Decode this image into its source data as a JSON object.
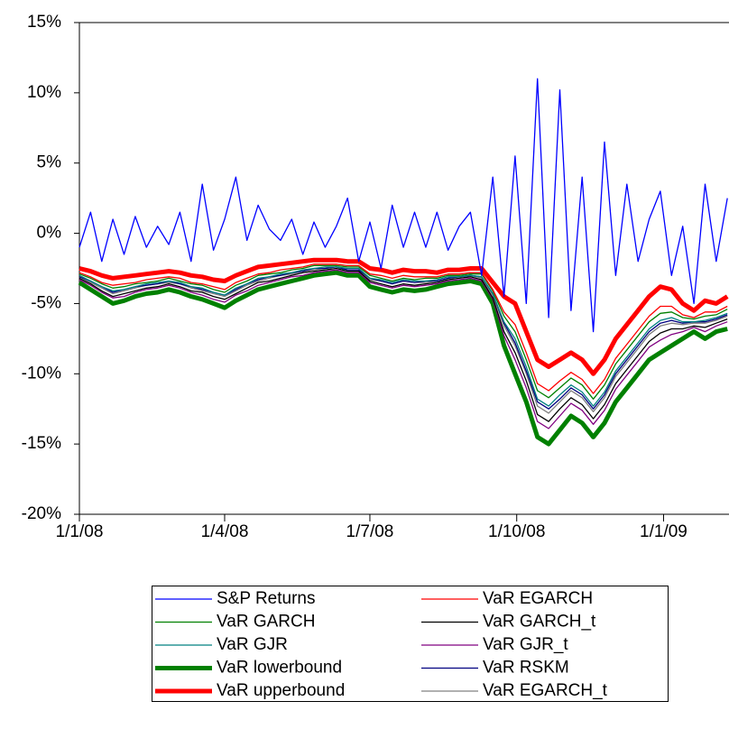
{
  "chart_data": {
    "type": "line",
    "x": [
      "2008-01-01",
      "2008-01-08",
      "2008-01-15",
      "2008-01-22",
      "2008-01-29",
      "2008-02-05",
      "2008-02-12",
      "2008-02-19",
      "2008-02-26",
      "2008-03-04",
      "2008-03-11",
      "2008-03-18",
      "2008-03-25",
      "2008-04-01",
      "2008-04-08",
      "2008-04-15",
      "2008-04-22",
      "2008-04-29",
      "2008-05-06",
      "2008-05-13",
      "2008-05-20",
      "2008-05-27",
      "2008-06-03",
      "2008-06-10",
      "2008-06-17",
      "2008-06-24",
      "2008-07-01",
      "2008-07-08",
      "2008-07-15",
      "2008-07-22",
      "2008-07-29",
      "2008-08-05",
      "2008-08-12",
      "2008-08-19",
      "2008-08-26",
      "2008-09-02",
      "2008-09-09",
      "2008-09-16",
      "2008-09-23",
      "2008-09-30",
      "2008-10-07",
      "2008-10-14",
      "2008-10-21",
      "2008-10-28",
      "2008-11-04",
      "2008-11-11",
      "2008-11-18",
      "2008-11-25",
      "2008-12-02",
      "2008-12-09",
      "2008-12-16",
      "2008-12-23",
      "2008-12-30",
      "2009-01-06",
      "2009-01-13",
      "2009-01-20",
      "2009-01-27",
      "2009-02-03",
      "2009-02-10"
    ],
    "xlim": [
      "2008-01-01",
      "2009-02-11"
    ],
    "xticks": [
      {
        "value": "2008-01-01",
        "label": "1/1/08"
      },
      {
        "value": "2008-04-01",
        "label": "1/4/08"
      },
      {
        "value": "2008-07-01",
        "label": "1/7/08"
      },
      {
        "value": "2008-10-01",
        "label": "1/10/08"
      },
      {
        "value": "2009-01-01",
        "label": "1/1/09"
      }
    ],
    "ylim": [
      -20,
      15
    ],
    "yticks": [
      {
        "value": -20,
        "label": "-20%"
      },
      {
        "value": -15,
        "label": "-15%"
      },
      {
        "value": -10,
        "label": "-10%"
      },
      {
        "value": -5,
        "label": "-5%"
      },
      {
        "value": 0,
        "label": "0%"
      },
      {
        "value": 5,
        "label": "5%"
      },
      {
        "value": 10,
        "label": "10%"
      },
      {
        "value": 15,
        "label": "15%"
      }
    ],
    "series": [
      {
        "name": "S&P Returns",
        "color": "#0000ff",
        "linewidth": 1.3,
        "values": [
          -1,
          1.5,
          -2,
          1.0,
          -1.5,
          1.2,
          -1,
          0.5,
          -0.8,
          1.5,
          -2.0,
          3.5,
          -1.2,
          1.0,
          4.0,
          -0.5,
          2.0,
          0.3,
          -0.5,
          1.0,
          -1.5,
          0.8,
          -1.0,
          0.5,
          2.5,
          -2.0,
          0.8,
          -2.5,
          2.0,
          -1.0,
          1.5,
          -1.0,
          1.5,
          -1.2,
          0.5,
          1.5,
          -3.0,
          4.0,
          -4.5,
          5.5,
          -5.0,
          11.0,
          -6.0,
          10.2,
          -5.5,
          4.0,
          -7.0,
          6.5,
          -3.0,
          3.5,
          -2.0,
          1.0,
          3.0,
          -3.0,
          0.5,
          -5.0,
          3.5,
          -2.0,
          2.5
        ]
      },
      {
        "name": "VaR EGARCH",
        "color": "#ff0000",
        "linewidth": 1.3,
        "values": [
          -2.8,
          -3.1,
          -3.5,
          -3.7,
          -3.6,
          -3.5,
          -3.3,
          -3.2,
          -3.1,
          -3.2,
          -3.5,
          -3.6,
          -3.8,
          -4.0,
          -3.5,
          -3.2,
          -2.9,
          -2.8,
          -2.6,
          -2.5,
          -2.4,
          -2.2,
          -2.2,
          -2.2,
          -2.3,
          -2.3,
          -2.9,
          -3.0,
          -3.2,
          -3.0,
          -3.1,
          -3.1,
          -3.1,
          -2.9,
          -2.9,
          -2.8,
          -2.8,
          -4.0,
          -5.6,
          -6.5,
          -8.5,
          -10.7,
          -11.2,
          -10.5,
          -9.9,
          -10.4,
          -11.4,
          -10.4,
          -8.9,
          -7.9,
          -6.9,
          -5.9,
          -5.2,
          -5.2,
          -5.8,
          -6.0,
          -5.6,
          -5.6,
          -5.2
        ]
      },
      {
        "name": "VaR GARCH",
        "color": "#008000",
        "linewidth": 1.3,
        "values": [
          -2.9,
          -3.2,
          -3.6,
          -3.9,
          -3.8,
          -3.6,
          -3.5,
          -3.4,
          -3.2,
          -3.4,
          -3.6,
          -3.7,
          -4.0,
          -4.2,
          -3.7,
          -3.4,
          -3.0,
          -2.9,
          -2.8,
          -2.6,
          -2.5,
          -2.3,
          -2.3,
          -2.3,
          -2.4,
          -2.4,
          -3.0,
          -3.2,
          -3.4,
          -3.2,
          -3.3,
          -3.2,
          -3.2,
          -3.0,
          -3.0,
          -2.9,
          -2.9,
          -4.1,
          -5.9,
          -7.0,
          -9.0,
          -11.2,
          -11.7,
          -11.0,
          -10.3,
          -10.8,
          -11.8,
          -10.8,
          -9.3,
          -8.3,
          -7.3,
          -6.3,
          -5.7,
          -5.6,
          -6.0,
          -6.1,
          -5.9,
          -5.8,
          -5.4
        ]
      },
      {
        "name": "VaR GARCH_t",
        "color": "#000000",
        "linewidth": 1.3,
        "values": [
          -3.2,
          -3.6,
          -4.1,
          -4.5,
          -4.3,
          -4.1,
          -3.9,
          -3.8,
          -3.6,
          -3.8,
          -4.1,
          -4.2,
          -4.5,
          -4.7,
          -4.3,
          -3.9,
          -3.5,
          -3.4,
          -3.2,
          -3.0,
          -2.8,
          -2.7,
          -2.6,
          -2.5,
          -2.7,
          -2.7,
          -3.4,
          -3.6,
          -3.8,
          -3.6,
          -3.7,
          -3.6,
          -3.5,
          -3.3,
          -3.2,
          -3.1,
          -3.3,
          -4.6,
          -7.0,
          -8.5,
          -10.5,
          -12.9,
          -13.4,
          -12.5,
          -11.7,
          -12.2,
          -13.2,
          -12.2,
          -10.7,
          -9.7,
          -8.7,
          -7.7,
          -7.1,
          -6.8,
          -6.8,
          -6.6,
          -6.7,
          -6.4,
          -6.1
        ]
      },
      {
        "name": "VaR GJR",
        "color": "#008080",
        "linewidth": 1.3,
        "values": [
          -3.0,
          -3.4,
          -3.8,
          -4.1,
          -4.0,
          -3.8,
          -3.6,
          -3.5,
          -3.4,
          -3.5,
          -3.8,
          -3.9,
          -4.2,
          -4.4,
          -3.9,
          -3.6,
          -3.2,
          -3.1,
          -2.9,
          -2.8,
          -2.6,
          -2.5,
          -2.4,
          -2.4,
          -2.5,
          -2.5,
          -3.2,
          -3.3,
          -3.5,
          -3.3,
          -3.4,
          -3.4,
          -3.3,
          -3.1,
          -3.1,
          -3.0,
          -3.1,
          -4.3,
          -6.3,
          -7.5,
          -9.5,
          -11.8,
          -12.3,
          -11.5,
          -10.8,
          -11.3,
          -12.3,
          -11.3,
          -9.8,
          -8.8,
          -7.8,
          -6.8,
          -6.2,
          -6.0,
          -6.3,
          -6.3,
          -6.2,
          -6.0,
          -5.7
        ]
      },
      {
        "name": "VaR GJR_t",
        "color": "#800080",
        "linewidth": 1.3,
        "values": [
          -3.3,
          -3.7,
          -4.2,
          -4.6,
          -4.5,
          -4.2,
          -4.0,
          -3.9,
          -3.7,
          -3.9,
          -4.2,
          -4.4,
          -4.7,
          -4.9,
          -4.4,
          -4.1,
          -3.7,
          -3.5,
          -3.3,
          -3.1,
          -3.0,
          -2.8,
          -2.7,
          -2.6,
          -2.8,
          -2.8,
          -3.5,
          -3.7,
          -3.9,
          -3.7,
          -3.8,
          -3.7,
          -3.6,
          -3.4,
          -3.3,
          -3.2,
          -3.4,
          -4.7,
          -7.3,
          -9.0,
          -11.0,
          -13.4,
          -13.9,
          -13.0,
          -12.1,
          -12.6,
          -13.6,
          -12.6,
          -11.1,
          -10.1,
          -9.1,
          -8.1,
          -7.6,
          -7.2,
          -7.0,
          -6.7,
          -7.0,
          -6.6,
          -6.3
        ]
      },
      {
        "name": "VaR lowerbound",
        "color": "#008000",
        "linewidth": 5,
        "values": [
          -3.5,
          -4,
          -4.5,
          -5,
          -4.8,
          -4.5,
          -4.3,
          -4.2,
          -4.0,
          -4.2,
          -4.5,
          -4.7,
          -5.0,
          -5.3,
          -4.8,
          -4.4,
          -4.0,
          -3.8,
          -3.6,
          -3.4,
          -3.2,
          -3.0,
          -2.9,
          -2.8,
          -3.0,
          -3.0,
          -3.8,
          -4.0,
          -4.2,
          -4.0,
          -4.1,
          -4.0,
          -3.8,
          -3.6,
          -3.5,
          -3.4,
          -3.6,
          -5.0,
          -8.0,
          -10.0,
          -12.0,
          -14.5,
          -15.0,
          -14.0,
          -13.0,
          -13.5,
          -14.5,
          -13.5,
          -12.0,
          -11.0,
          -10.0,
          -9.0,
          -8.5,
          -8.0,
          -7.5,
          -7.0,
          -7.5,
          -7.0,
          -6.8
        ]
      },
      {
        "name": "VaR RSKM",
        "color": "#000080",
        "linewidth": 1.3,
        "values": [
          -3.1,
          -3.4,
          -3.8,
          -4.2,
          -4.0,
          -3.8,
          -3.7,
          -3.6,
          -3.4,
          -3.6,
          -3.8,
          -4.0,
          -4.2,
          -4.4,
          -4.0,
          -3.6,
          -3.3,
          -3.1,
          -3.0,
          -2.8,
          -2.7,
          -2.5,
          -2.5,
          -2.4,
          -2.6,
          -2.6,
          -3.2,
          -3.4,
          -3.6,
          -3.4,
          -3.5,
          -3.4,
          -3.4,
          -3.2,
          -3.1,
          -3.0,
          -3.1,
          -4.3,
          -6.4,
          -7.8,
          -9.8,
          -12.0,
          -12.5,
          -11.8,
          -11.0,
          -11.5,
          -12.5,
          -11.5,
          -10.0,
          -9.0,
          -8.0,
          -7.0,
          -6.4,
          -6.2,
          -6.4,
          -6.3,
          -6.3,
          -6.1,
          -5.8
        ]
      },
      {
        "name": "VaR upperbound",
        "color": "#ff0000",
        "linewidth": 5,
        "values": [
          -2.5,
          -2.7,
          -3.0,
          -3.2,
          -3.1,
          -3.0,
          -2.9,
          -2.8,
          -2.7,
          -2.8,
          -3.0,
          -3.1,
          -3.3,
          -3.4,
          -3.0,
          -2.7,
          -2.4,
          -2.3,
          -2.2,
          -2.1,
          -2.0,
          -1.9,
          -1.9,
          -1.9,
          -2.0,
          -2.0,
          -2.5,
          -2.6,
          -2.8,
          -2.6,
          -2.7,
          -2.7,
          -2.8,
          -2.6,
          -2.6,
          -2.5,
          -2.5,
          -3.5,
          -4.5,
          -5.0,
          -7.0,
          -9.0,
          -9.5,
          -9.0,
          -8.5,
          -9.0,
          -10.0,
          -9.0,
          -7.5,
          -6.5,
          -5.5,
          -4.5,
          -3.8,
          -4.0,
          -5.0,
          -5.5,
          -4.8,
          -5.0,
          -4.5
        ]
      },
      {
        "name": "VaR EGARCH_t",
        "color": "#808080",
        "linewidth": 1.3,
        "values": [
          -3.1,
          -3.5,
          -3.9,
          -4.3,
          -4.1,
          -3.9,
          -3.7,
          -3.6,
          -3.5,
          -3.6,
          -3.9,
          -4.1,
          -4.3,
          -4.5,
          -4.1,
          -3.7,
          -3.4,
          -3.2,
          -3.0,
          -2.9,
          -2.7,
          -2.6,
          -2.5,
          -2.4,
          -2.6,
          -2.6,
          -3.3,
          -3.4,
          -3.6,
          -3.4,
          -3.5,
          -3.5,
          -3.4,
          -3.2,
          -3.1,
          -3.0,
          -3.2,
          -4.4,
          -6.6,
          -8.0,
          -10.0,
          -12.3,
          -12.8,
          -12.0,
          -11.2,
          -11.7,
          -12.7,
          -11.7,
          -10.2,
          -9.2,
          -8.2,
          -7.2,
          -6.6,
          -6.4,
          -6.5,
          -6.4,
          -6.4,
          -6.2,
          -5.9
        ]
      }
    ]
  }
}
